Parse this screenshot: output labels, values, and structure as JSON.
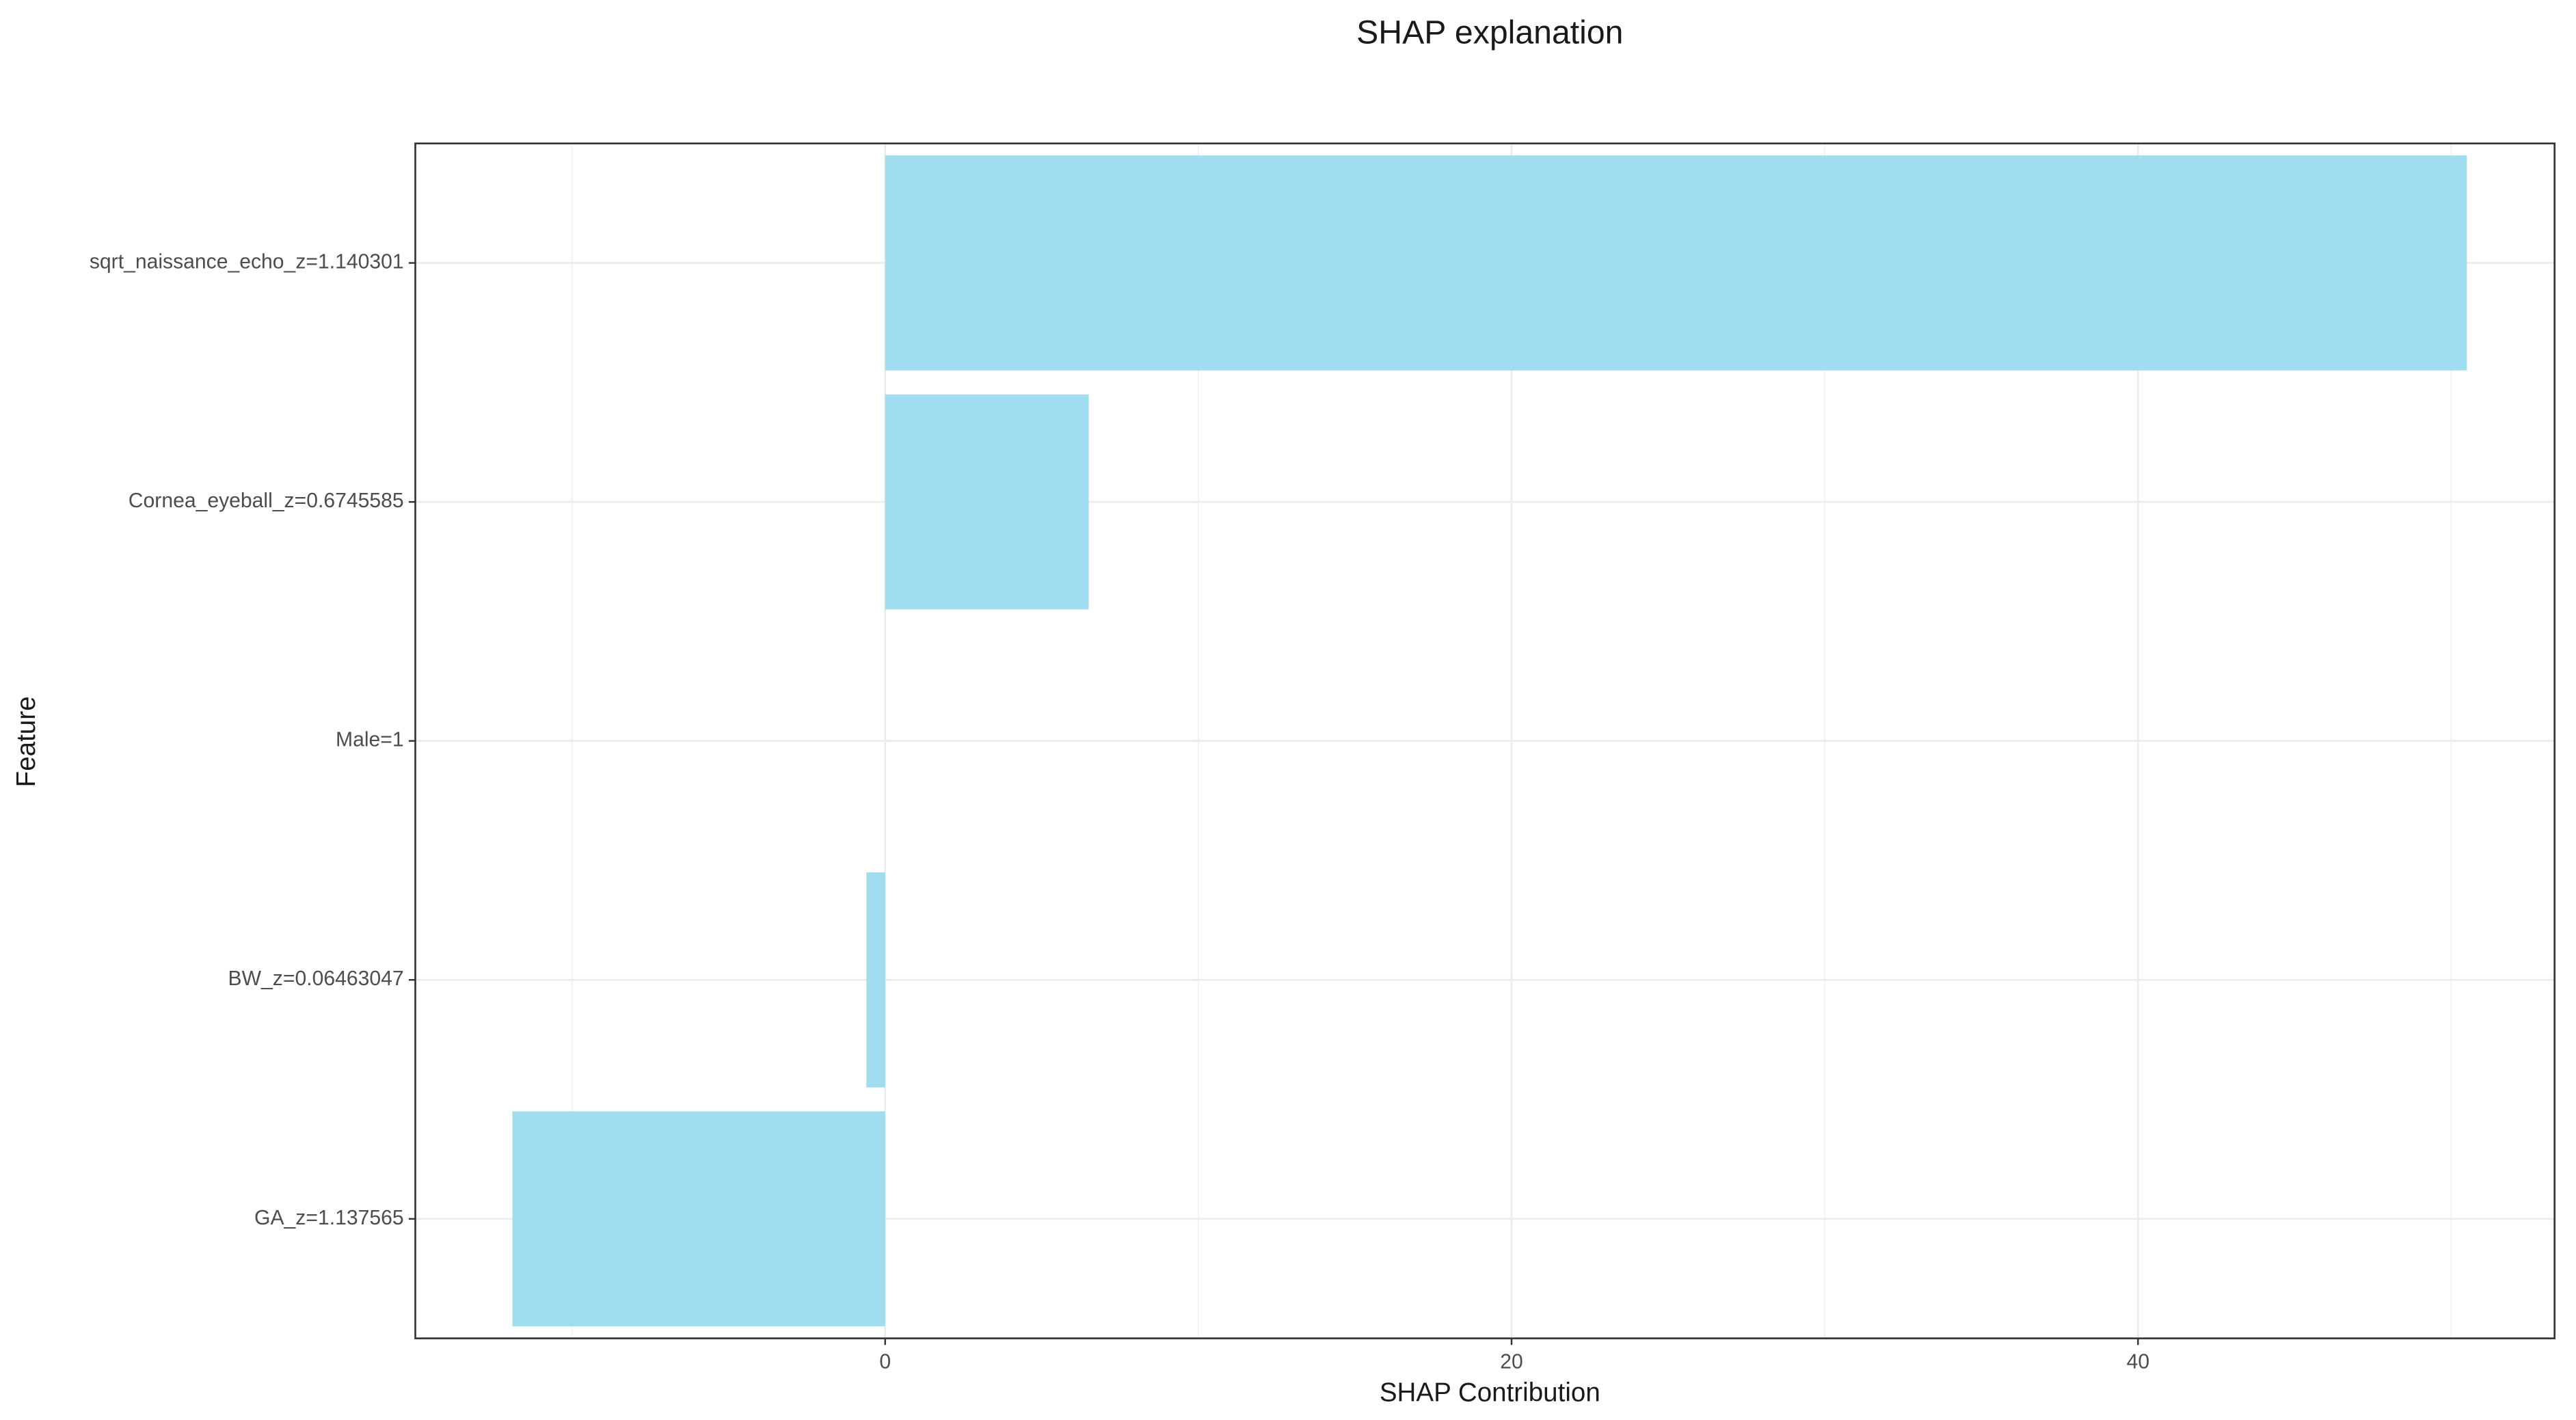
{
  "chart_data": {
    "type": "bar",
    "orientation": "horizontal",
    "title": "SHAP explanation",
    "x_label": "SHAP Contribution",
    "y_label": "Feature",
    "categories": [
      "sqrt_naissance_echo_z=1.140301",
      "Cornea_eyeball_z=0.6745585",
      "Male=1",
      "BW_z=0.06463047",
      "GA_z=1.137565"
    ],
    "values": [
      50.5,
      6.5,
      0,
      -0.6,
      -11.9
    ],
    "color": "#a0ddf1",
    "xlim": [
      -15,
      53.3
    ],
    "xticks": [
      0,
      20,
      40
    ],
    "minor_xticks": [
      -10,
      10,
      30,
      50
    ],
    "grid": true
  }
}
